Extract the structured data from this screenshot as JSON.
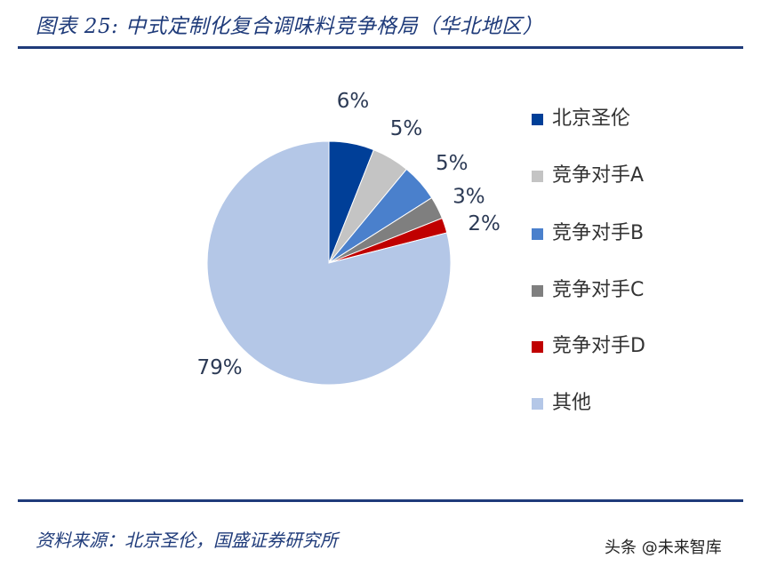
{
  "header": {
    "title": "图表 25:  中式定制化复合调味料竞争格局（华北地区）"
  },
  "footer": {
    "source": "资料来源：北京圣伦，国盛证券研究所",
    "watermark": "头条 @未来智库"
  },
  "chart_data": {
    "type": "pie",
    "title": "",
    "start_angle": "12 o'clock",
    "direction": "clockwise",
    "legend_position": "right",
    "slices": [
      {
        "name": "北京圣伦",
        "value": 6,
        "label": "6%",
        "color": "#003f98"
      },
      {
        "name": "竞争对手A",
        "value": 5,
        "label": "5%",
        "color": "#c4c4c4"
      },
      {
        "name": "竞争对手B",
        "value": 5,
        "label": "5%",
        "color": "#4a80cc"
      },
      {
        "name": "竞争对手C",
        "value": 3,
        "label": "3%",
        "color": "#7f7f7f"
      },
      {
        "name": "竞争对手D",
        "value": 2,
        "label": "2%",
        "color": "#c00000"
      },
      {
        "name": "其他",
        "value": 79,
        "label": "79%",
        "color": "#b4c7e7"
      }
    ]
  }
}
